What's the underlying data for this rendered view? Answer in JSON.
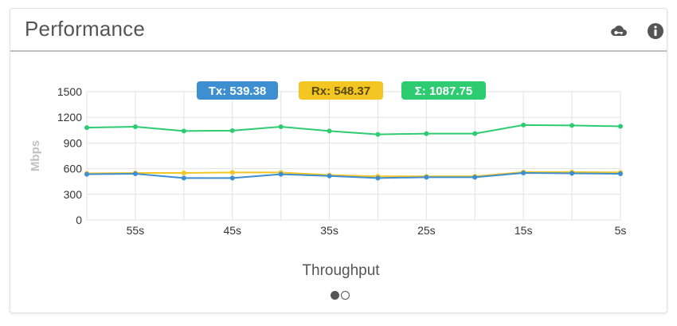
{
  "widget": {
    "title": "Performance",
    "icons": [
      "cloud-key-icon",
      "info-icon"
    ]
  },
  "chart_data": {
    "type": "line",
    "ylabel": "Mbps",
    "xlabel": "Throughput",
    "ylim": [
      0,
      1500
    ],
    "yticks": [
      0,
      300,
      600,
      900,
      1200,
      1500
    ],
    "x": [
      60,
      55,
      50,
      45,
      40,
      35,
      30,
      25,
      20,
      15,
      10,
      5
    ],
    "xtick_labels": [
      "55s",
      "45s",
      "35s",
      "25s",
      "15s",
      "5s"
    ],
    "xtick_values": [
      55,
      45,
      35,
      25,
      15,
      5
    ],
    "grid": true,
    "series": [
      {
        "name": "Σ",
        "color": "#2ecc71",
        "values": [
          1080,
          1090,
          1040,
          1045,
          1090,
          1040,
          1000,
          1010,
          1010,
          1110,
          1105,
          1095
        ]
      },
      {
        "name": "Rx",
        "color": "#f3c623",
        "values": [
          545,
          550,
          550,
          555,
          555,
          525,
          510,
          510,
          510,
          560,
          560,
          555
        ]
      },
      {
        "name": "Tx",
        "color": "#3d8fd1",
        "values": [
          535,
          540,
          490,
          490,
          535,
          515,
          490,
          500,
          500,
          550,
          545,
          540
        ]
      }
    ],
    "legend": [
      {
        "label": "Tx: 539.38",
        "color": "#3d8fd1"
      },
      {
        "label": "Rx: 548.37",
        "color": "#f3c623"
      },
      {
        "label": "Σ: 1087.75",
        "color": "#2ecc71"
      }
    ]
  },
  "pager": {
    "pages": 2,
    "active": 0
  }
}
